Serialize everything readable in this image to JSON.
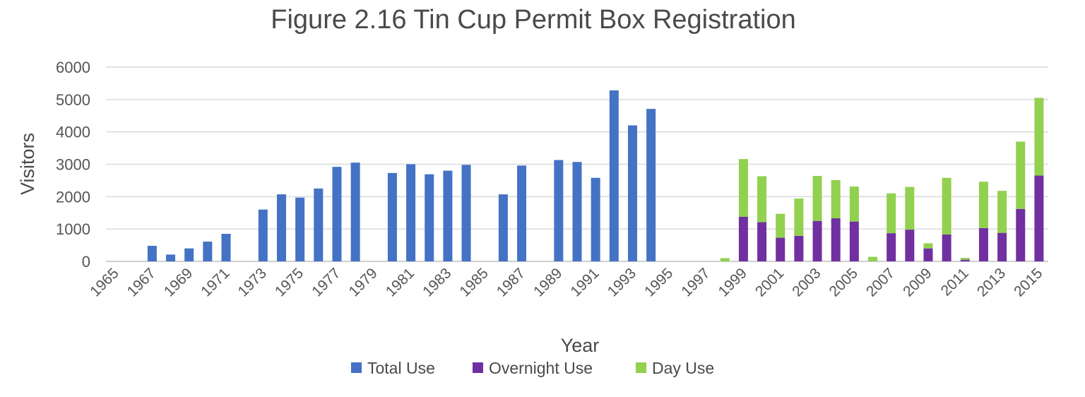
{
  "chart_data": {
    "type": "bar",
    "title": "Figure 2.16 Tin Cup Permit Box Registration",
    "xlabel": "Year",
    "ylabel": "Visitors",
    "ylim": [
      0,
      6000
    ],
    "yticks": [
      0,
      1000,
      2000,
      3000,
      4000,
      5000,
      6000
    ],
    "grid": true,
    "legend_position": "bottom",
    "x_tick_labels": [
      "1965",
      "1967",
      "1969",
      "1971",
      "1973",
      "1975",
      "1977",
      "1979",
      "1981",
      "1983",
      "1985",
      "1987",
      "1989",
      "1991",
      "1993",
      "1995",
      "1997",
      "1999",
      "2001",
      "2003",
      "2005",
      "2007",
      "2009",
      "2011",
      "2013",
      "2015"
    ],
    "categories": [
      1965,
      1966,
      1967,
      1968,
      1969,
      1970,
      1971,
      1972,
      1973,
      1974,
      1975,
      1976,
      1977,
      1978,
      1979,
      1980,
      1981,
      1982,
      1983,
      1984,
      1985,
      1986,
      1987,
      1988,
      1989,
      1990,
      1991,
      1992,
      1993,
      1994,
      1995,
      1996,
      1997,
      1998,
      1999,
      2000,
      2001,
      2002,
      2003,
      2004,
      2005,
      2006,
      2007,
      2008,
      2009,
      2010,
      2011,
      2012,
      2013,
      2014,
      2015
    ],
    "series": [
      {
        "name": "Total Use",
        "color": "#4472C4",
        "stack": "a",
        "values": [
          null,
          null,
          480,
          210,
          400,
          610,
          850,
          null,
          1600,
          2070,
          1970,
          2250,
          2920,
          3050,
          null,
          2730,
          3000,
          2690,
          2800,
          2980,
          null,
          2070,
          2960,
          null,
          3130,
          3070,
          2580,
          5280,
          4200,
          4710,
          null,
          null,
          null,
          null,
          null,
          null,
          null,
          null,
          null,
          null,
          null,
          null,
          null,
          null,
          null,
          null,
          null,
          null,
          null,
          null,
          null
        ]
      },
      {
        "name": "Overnight Use",
        "color": "#7030A0",
        "stack": "b",
        "values": [
          null,
          null,
          null,
          null,
          null,
          null,
          null,
          null,
          null,
          null,
          null,
          null,
          null,
          null,
          null,
          null,
          null,
          null,
          null,
          null,
          null,
          null,
          null,
          null,
          null,
          null,
          null,
          null,
          null,
          null,
          null,
          null,
          null,
          0,
          1380,
          1210,
          730,
          790,
          1250,
          1330,
          1230,
          0,
          870,
          980,
          400,
          830,
          50,
          1030,
          880,
          1620,
          2650
        ]
      },
      {
        "name": "Day Use",
        "color": "#92D050",
        "stack": "b",
        "values": [
          null,
          null,
          null,
          null,
          null,
          null,
          null,
          null,
          null,
          null,
          null,
          null,
          null,
          null,
          null,
          null,
          null,
          null,
          null,
          null,
          null,
          null,
          null,
          null,
          null,
          null,
          null,
          null,
          null,
          null,
          null,
          null,
          null,
          100,
          1780,
          1420,
          740,
          1150,
          1390,
          1180,
          1080,
          140,
          1230,
          1320,
          160,
          1750,
          60,
          1430,
          1300,
          2080,
          2400
        ]
      }
    ]
  }
}
